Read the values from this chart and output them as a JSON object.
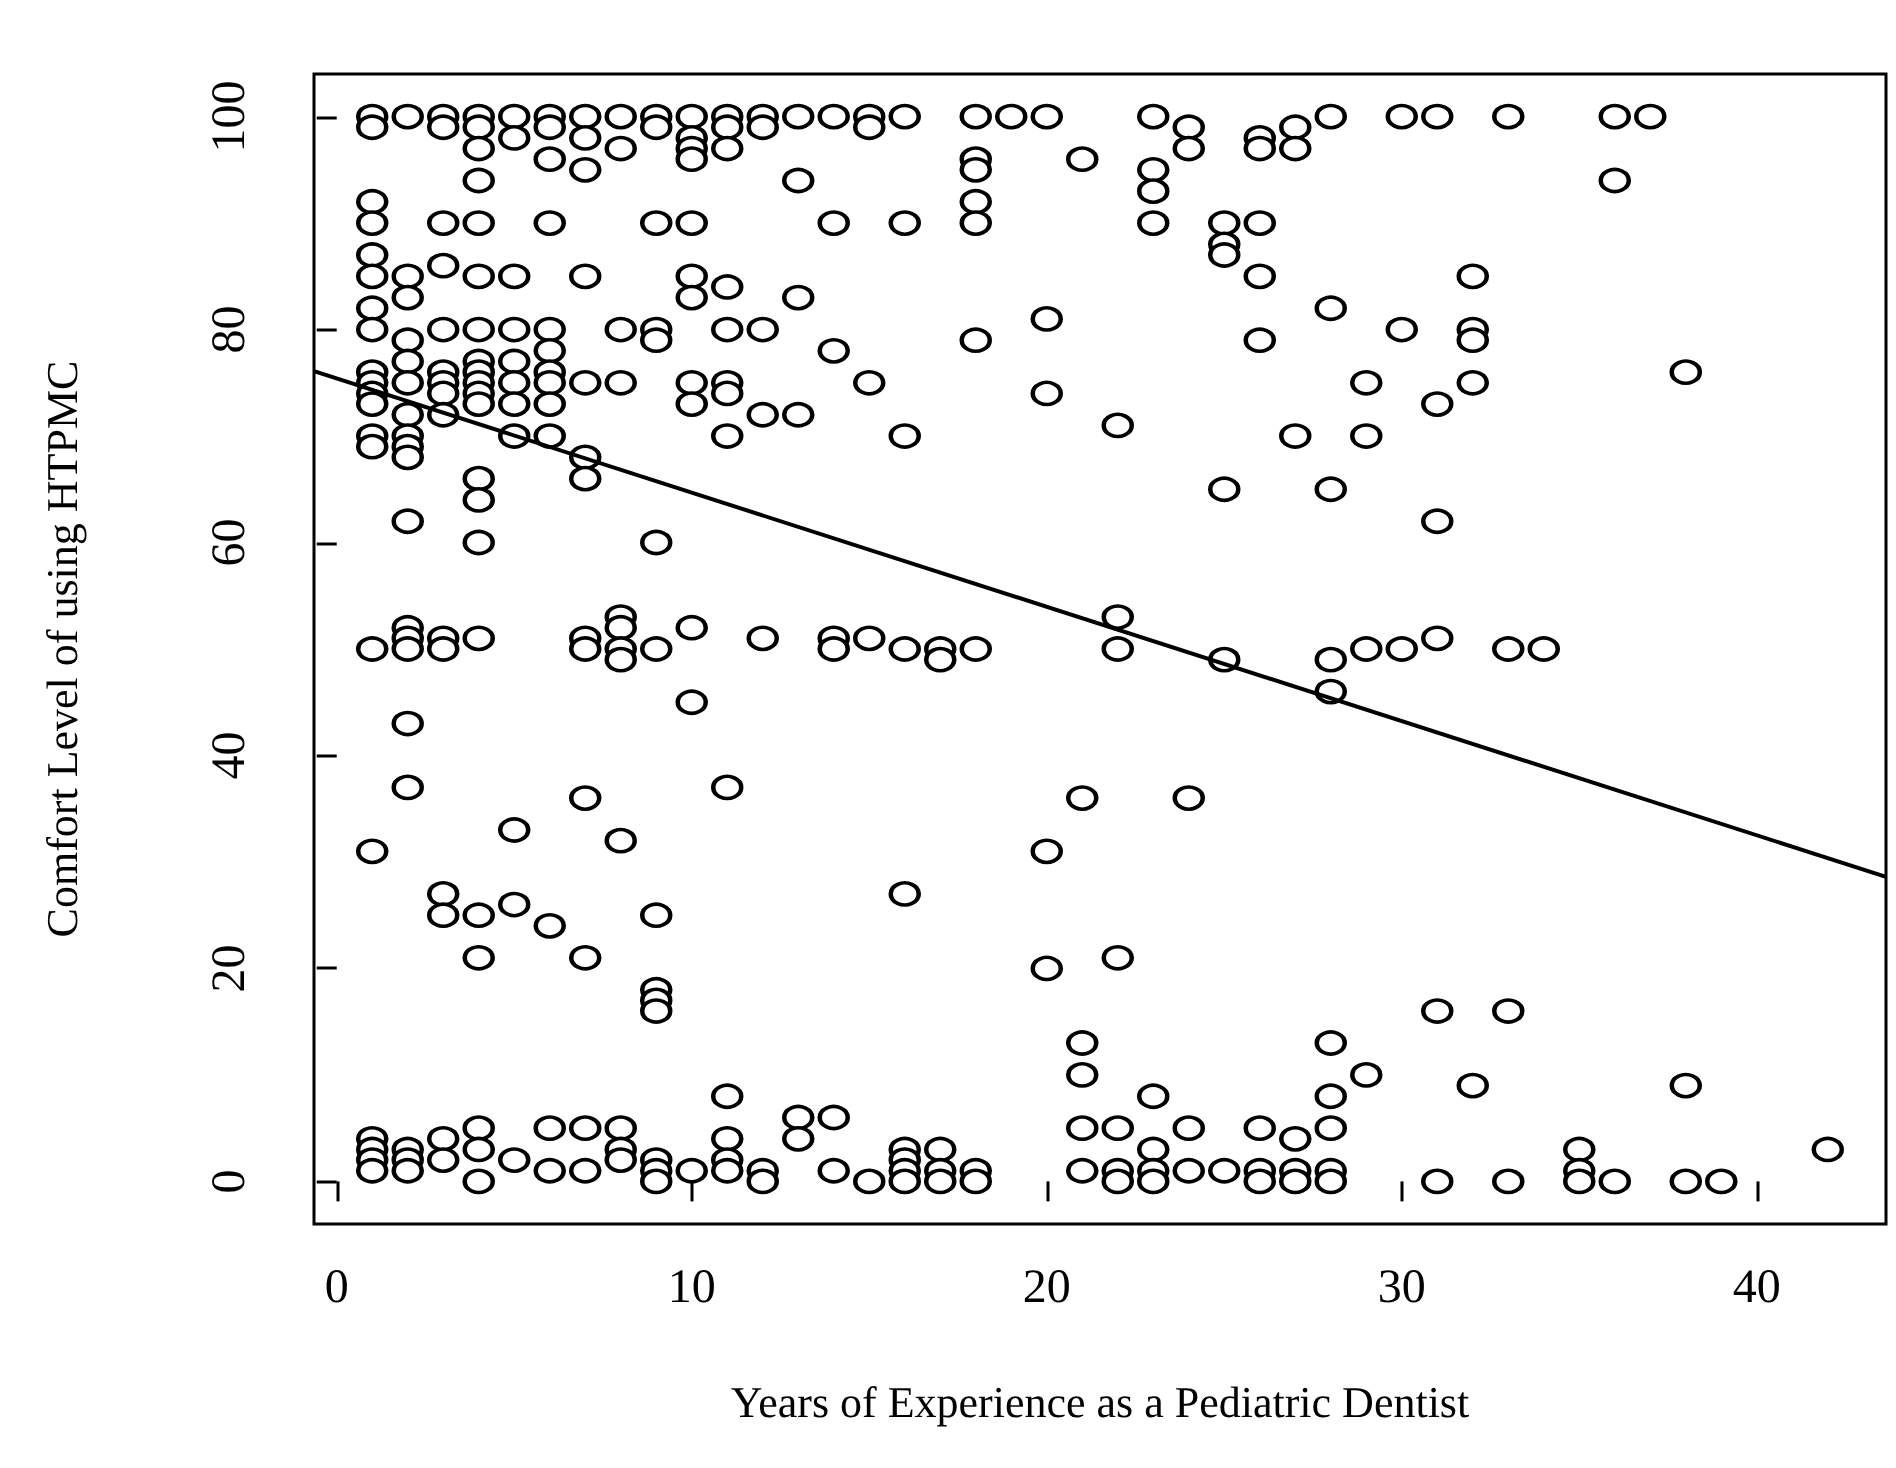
{
  "chart_data": {
    "type": "scatter",
    "xlabel": "Years of Experience as a Pediatric Dentist",
    "ylabel": "Comfort Level of using HTPMC",
    "xlim": [
      -0.64,
      43.64
    ],
    "xticks": [
      0,
      10,
      20,
      30,
      40
    ],
    "ylim": [
      -4,
      104
    ],
    "yticks": [
      0,
      20,
      40,
      60,
      80,
      100
    ],
    "grid": false,
    "series": [
      {
        "marker": "circle",
        "color": "#000000",
        "x": [
          1,
          1,
          1,
          1,
          1,
          1,
          1,
          1,
          1,
          1,
          1,
          1,
          1,
          1,
          1,
          1,
          1,
          1,
          1,
          1,
          2,
          2,
          2,
          2,
          2,
          2,
          2,
          2,
          2,
          2,
          2,
          2,
          2,
          2,
          2,
          2,
          2,
          2,
          2,
          3,
          3,
          3,
          3,
          3,
          3,
          3,
          3,
          3,
          3,
          3,
          3,
          3,
          3,
          3,
          4,
          4,
          4,
          4,
          4,
          4,
          4,
          4,
          4,
          4,
          4,
          4,
          4,
          4,
          4,
          4,
          4,
          4,
          4,
          4,
          4,
          5,
          5,
          5,
          5,
          5,
          5,
          5,
          5,
          5,
          5,
          5,
          6,
          6,
          6,
          6,
          6,
          6,
          6,
          6,
          6,
          6,
          6,
          6,
          6,
          7,
          7,
          7,
          7,
          7,
          7,
          7,
          7,
          7,
          7,
          7,
          7,
          7,
          8,
          8,
          8,
          8,
          8,
          8,
          8,
          8,
          8,
          8,
          8,
          8,
          9,
          9,
          9,
          9,
          9,
          9,
          9,
          9,
          9,
          9,
          9,
          9,
          9,
          9,
          10,
          10,
          10,
          10,
          10,
          10,
          10,
          10,
          10,
          10,
          10,
          10,
          11,
          11,
          11,
          11,
          11,
          11,
          11,
          11,
          11,
          11,
          11,
          11,
          11,
          12,
          12,
          12,
          12,
          12,
          12,
          12,
          13,
          13,
          13,
          13,
          13,
          13,
          14,
          14,
          14,
          14,
          14,
          14,
          14,
          15,
          15,
          15,
          15,
          15,
          16,
          16,
          16,
          16,
          16,
          16,
          16,
          16,
          16,
          17,
          17,
          17,
          17,
          17,
          18,
          18,
          18,
          18,
          18,
          18,
          18,
          18,
          18,
          19,
          20,
          20,
          20,
          20,
          20,
          21,
          21,
          21,
          21,
          21,
          21,
          22,
          22,
          22,
          22,
          22,
          22,
          22,
          23,
          23,
          23,
          23,
          23,
          23,
          23,
          23,
          24,
          24,
          24,
          24,
          24,
          25,
          25,
          25,
          25,
          25,
          25,
          26,
          26,
          26,
          26,
          26,
          26,
          26,
          26,
          27,
          27,
          27,
          27,
          27,
          27,
          28,
          28,
          28,
          28,
          28,
          28,
          28,
          28,
          28,
          28,
          29,
          29,
          29,
          29,
          30,
          30,
          30,
          31,
          31,
          31,
          31,
          31,
          31,
          32,
          32,
          32,
          32,
          32,
          33,
          33,
          33,
          33,
          34,
          35,
          35,
          35,
          36,
          36,
          36,
          37,
          38,
          38,
          38,
          39,
          42
        ],
        "values": [
          100,
          99,
          92,
          90,
          87,
          85,
          82,
          80,
          76,
          75,
          74,
          73,
          70,
          69,
          50,
          31,
          4,
          3,
          2,
          1,
          100,
          85,
          83,
          79,
          77,
          75,
          72,
          70,
          69,
          68,
          62,
          52,
          51,
          50,
          43,
          37,
          3,
          2,
          1,
          100,
          99,
          90,
          86,
          80,
          76,
          75,
          74,
          72,
          51,
          50,
          27,
          25,
          4,
          2,
          100,
          99,
          97,
          94,
          90,
          85,
          80,
          77,
          76,
          75,
          74,
          73,
          66,
          64,
          60,
          51,
          25,
          21,
          5,
          3,
          0,
          100,
          98,
          85,
          80,
          77,
          75,
          73,
          70,
          33,
          26,
          2,
          100,
          99,
          96,
          90,
          80,
          78,
          76,
          75,
          73,
          70,
          24,
          5,
          1,
          100,
          98,
          95,
          85,
          75,
          68,
          66,
          51,
          50,
          36,
          21,
          5,
          1,
          100,
          97,
          80,
          75,
          53,
          52,
          50,
          49,
          32,
          5,
          3,
          2,
          100,
          99,
          90,
          80,
          79,
          60,
          50,
          25,
          18,
          17,
          16,
          2,
          1,
          0,
          100,
          98,
          97,
          96,
          90,
          85,
          83,
          75,
          73,
          52,
          45,
          1,
          100,
          99,
          97,
          84,
          80,
          75,
          74,
          70,
          37,
          8,
          4,
          2,
          1,
          100,
          99,
          80,
          72,
          51,
          1,
          0,
          100,
          94,
          83,
          72,
          6,
          4,
          100,
          90,
          78,
          51,
          50,
          6,
          1,
          100,
          99,
          75,
          51,
          0,
          100,
          90,
          70,
          50,
          27,
          3,
          2,
          1,
          0,
          50,
          49,
          3,
          1,
          0,
          100,
          96,
          95,
          92,
          90,
          79,
          50,
          1,
          0,
          100,
          100,
          81,
          74,
          31,
          20,
          96,
          36,
          13,
          10,
          5,
          1,
          71,
          53,
          50,
          21,
          5,
          1,
          0,
          100,
          95,
          93,
          90,
          8,
          3,
          1,
          0,
          99,
          97,
          36,
          5,
          1,
          90,
          88,
          87,
          65,
          49,
          1,
          98,
          97,
          90,
          85,
          79,
          5,
          1,
          0,
          99,
          97,
          70,
          4,
          1,
          0,
          100,
          82,
          65,
          49,
          46,
          13,
          8,
          5,
          1,
          0,
          75,
          70,
          50,
          10,
          100,
          80,
          50,
          100,
          73,
          62,
          51,
          16,
          0,
          85,
          80,
          79,
          75,
          9,
          100,
          50,
          16,
          0,
          50,
          3,
          1,
          0,
          100,
          94,
          0,
          100,
          76,
          9,
          0,
          0,
          3
        ]
      },
      {
        "type": "line",
        "color": "#000000",
        "line_style": "solid",
        "x": [
          -0.64,
          43.64
        ],
        "values": [
          76.1,
          28.6
        ]
      }
    ]
  }
}
